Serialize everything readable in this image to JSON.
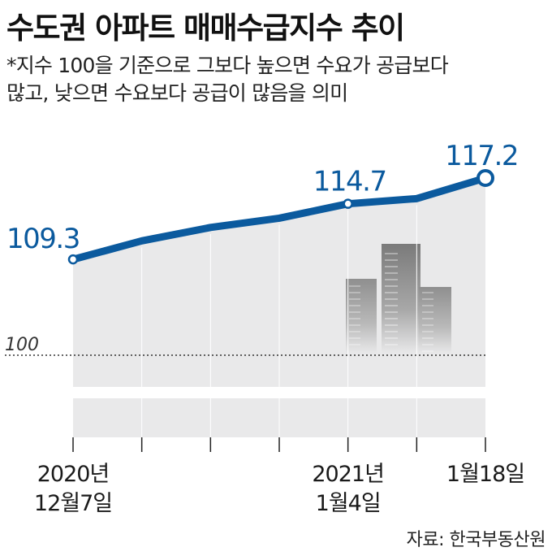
{
  "title": "수도권 아파트 매매수급지수 추이",
  "subtitle_lines": [
    "*지수 100을 기준으로 그보다 높으면 수요가 공급보다",
    "많고, 낮으면 수요보다 공급이 많음을 의미"
  ],
  "source": "자료: 한국부동산원",
  "colors": {
    "line": "#0b5a9e",
    "area": "#e9e9ea",
    "text": "#1a1a1a"
  },
  "chart_data": {
    "type": "area",
    "baseline_value": 100,
    "baseline_label": "100",
    "x": [
      0,
      1,
      2,
      3,
      4,
      5,
      6
    ],
    "values": [
      109.3,
      111.1,
      112.4,
      113.3,
      114.7,
      115.2,
      117.2
    ],
    "labeled_points": [
      {
        "index": 0,
        "label": "109.3"
      },
      {
        "index": 4,
        "label": "114.7"
      },
      {
        "index": 6,
        "label": "117.2"
      }
    ],
    "x_tick_labels": [
      {
        "index": 0,
        "lines": [
          "2020년",
          "12월7일"
        ]
      },
      {
        "index": 4,
        "lines": [
          "2021년",
          "1월4일"
        ]
      },
      {
        "index": 6,
        "lines": [
          "1월18일"
        ]
      }
    ],
    "ylim": [
      100,
      117.2
    ],
    "grid": false,
    "decoration": "building-illustration"
  }
}
